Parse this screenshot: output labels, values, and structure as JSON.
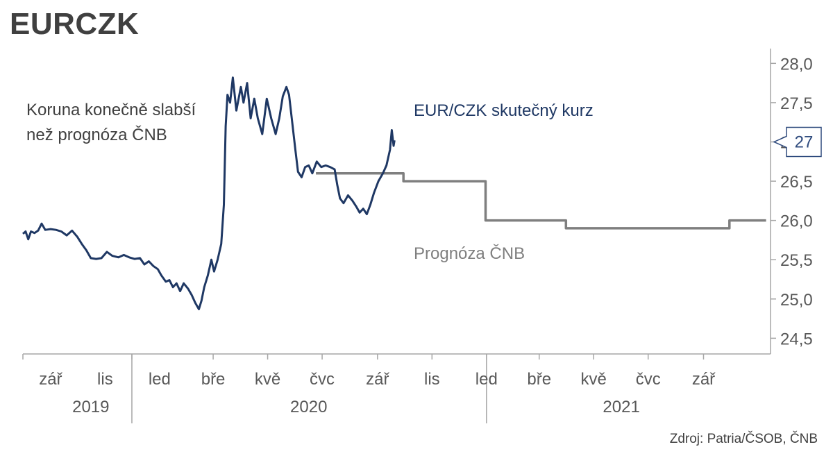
{
  "title": "EURCZK",
  "source": "Zdroj: Patria/ČSOB, ČNB",
  "colors": {
    "actual": "#1f3864",
    "forecast": "#7f7f7f",
    "axis": "#a6a6a6",
    "text": "#595959",
    "callout": "#2e4a7d"
  },
  "chart_data": {
    "type": "line",
    "title": "EURCZK",
    "xlabel": "",
    "ylabel": "",
    "xlim": [
      "2019-08-01",
      "2021-11-15"
    ],
    "ylim": [
      24.3,
      28.1
    ],
    "y_ticks": [
      24.5,
      25.0,
      25.5,
      26.0,
      26.5,
      27.0,
      27.5,
      28.0
    ],
    "y_tick_labels": [
      "24,5",
      "25,0",
      "25,5",
      "26,0",
      "26,5",
      "27,0",
      "27,5",
      "28,0"
    ],
    "x_ticks": [
      {
        "date": "2019-08-01",
        "label": "",
        "mark": true
      },
      {
        "date": "2019-10-01",
        "label": "",
        "mark": false
      },
      {
        "date": "2019-12-01",
        "label": "",
        "mark": true
      },
      {
        "date": "2020-01-01",
        "label": "",
        "mark": false
      },
      {
        "date": "2020-03-01",
        "label": "",
        "mark": true
      },
      {
        "date": "2020-05-01",
        "label": "",
        "mark": true
      },
      {
        "date": "2020-07-01",
        "label": "",
        "mark": true
      },
      {
        "date": "2020-09-01",
        "label": "",
        "mark": true
      },
      {
        "date": "2020-11-01",
        "label": "",
        "mark": true
      },
      {
        "date": "2021-01-01",
        "label": "",
        "mark": true
      },
      {
        "date": "2021-03-01",
        "label": "",
        "mark": true
      },
      {
        "date": "2021-05-01",
        "label": "",
        "mark": true
      },
      {
        "date": "2021-07-01",
        "label": "",
        "mark": true
      },
      {
        "date": "2021-09-01",
        "label": "",
        "mark": true
      }
    ],
    "x_month_labels": [
      {
        "date": "2019-09-01",
        "label": "zář"
      },
      {
        "date": "2019-11-01",
        "label": "lis"
      },
      {
        "date": "2020-01-01",
        "label": "led"
      },
      {
        "date": "2020-03-01",
        "label": "bře"
      },
      {
        "date": "2020-05-01",
        "label": "kvě"
      },
      {
        "date": "2020-07-01",
        "label": "čvc"
      },
      {
        "date": "2020-09-01",
        "label": "zář"
      },
      {
        "date": "2020-11-01",
        "label": "lis"
      },
      {
        "date": "2021-01-01",
        "label": "led"
      },
      {
        "date": "2021-03-01",
        "label": "bře"
      },
      {
        "date": "2021-05-01",
        "label": "kvě"
      },
      {
        "date": "2021-07-01",
        "label": "čvc"
      },
      {
        "date": "2021-09-01",
        "label": "zář"
      }
    ],
    "x_year_labels": [
      {
        "date": "2019-10-16",
        "label": "2019"
      },
      {
        "date": "2020-06-16",
        "label": "2020"
      },
      {
        "date": "2021-06-01",
        "label": "2021"
      }
    ],
    "year_separators": [
      "2019-12-01",
      "2021-01-01"
    ],
    "series": [
      {
        "name": "EUR/CZK skutečný kurz",
        "style": "actual",
        "points": [
          [
            "2019-08-01",
            25.83
          ],
          [
            "2019-08-04",
            25.86
          ],
          [
            "2019-08-07",
            25.76
          ],
          [
            "2019-08-10",
            25.86
          ],
          [
            "2019-08-14",
            25.84
          ],
          [
            "2019-08-18",
            25.87
          ],
          [
            "2019-08-22",
            25.96
          ],
          [
            "2019-08-26",
            25.88
          ],
          [
            "2019-09-01",
            25.89
          ],
          [
            "2019-09-07",
            25.88
          ],
          [
            "2019-09-13",
            25.86
          ],
          [
            "2019-09-19",
            25.81
          ],
          [
            "2019-09-25",
            25.87
          ],
          [
            "2019-10-01",
            25.79
          ],
          [
            "2019-10-06",
            25.7
          ],
          [
            "2019-10-11",
            25.62
          ],
          [
            "2019-10-16",
            25.52
          ],
          [
            "2019-10-22",
            25.51
          ],
          [
            "2019-10-28",
            25.52
          ],
          [
            "2019-11-03",
            25.6
          ],
          [
            "2019-11-09",
            25.55
          ],
          [
            "2019-11-16",
            25.53
          ],
          [
            "2019-11-22",
            25.56
          ],
          [
            "2019-11-28",
            25.53
          ],
          [
            "2019-12-04",
            25.51
          ],
          [
            "2019-12-10",
            25.52
          ],
          [
            "2019-12-15",
            25.44
          ],
          [
            "2019-12-20",
            25.48
          ],
          [
            "2019-12-25",
            25.42
          ],
          [
            "2019-12-30",
            25.38
          ],
          [
            "2020-01-03",
            25.3
          ],
          [
            "2020-01-08",
            25.22
          ],
          [
            "2020-01-12",
            25.24
          ],
          [
            "2020-01-16",
            25.15
          ],
          [
            "2020-01-20",
            25.2
          ],
          [
            "2020-01-24",
            25.1
          ],
          [
            "2020-01-28",
            25.2
          ],
          [
            "2020-02-02",
            25.13
          ],
          [
            "2020-02-06",
            25.05
          ],
          [
            "2020-02-10",
            24.95
          ],
          [
            "2020-02-14",
            24.87
          ],
          [
            "2020-02-17",
            24.98
          ],
          [
            "2020-02-20",
            25.15
          ],
          [
            "2020-02-24",
            25.3
          ],
          [
            "2020-02-28",
            25.5
          ],
          [
            "2020-03-02",
            25.35
          ],
          [
            "2020-03-06",
            25.5
          ],
          [
            "2020-03-10",
            25.7
          ],
          [
            "2020-03-13",
            26.2
          ],
          [
            "2020-03-15",
            27.2
          ],
          [
            "2020-03-17",
            27.6
          ],
          [
            "2020-03-20",
            27.5
          ],
          [
            "2020-03-23",
            27.82
          ],
          [
            "2020-03-27",
            27.4
          ],
          [
            "2020-04-01",
            27.7
          ],
          [
            "2020-04-04",
            27.5
          ],
          [
            "2020-04-08",
            27.75
          ],
          [
            "2020-04-12",
            27.3
          ],
          [
            "2020-04-16",
            27.55
          ],
          [
            "2020-04-20",
            27.3
          ],
          [
            "2020-04-25",
            27.1
          ],
          [
            "2020-04-30",
            27.55
          ],
          [
            "2020-05-05",
            27.3
          ],
          [
            "2020-05-10",
            27.1
          ],
          [
            "2020-05-14",
            27.3
          ],
          [
            "2020-05-18",
            27.58
          ],
          [
            "2020-05-22",
            27.7
          ],
          [
            "2020-05-25",
            27.6
          ],
          [
            "2020-05-28",
            27.3
          ],
          [
            "2020-06-01",
            26.9
          ],
          [
            "2020-06-04",
            26.62
          ],
          [
            "2020-06-08",
            26.55
          ],
          [
            "2020-06-12",
            26.68
          ],
          [
            "2020-06-16",
            26.7
          ],
          [
            "2020-06-20",
            26.6
          ],
          [
            "2020-06-25",
            26.75
          ],
          [
            "2020-06-30",
            26.68
          ],
          [
            "2020-07-05",
            26.7
          ],
          [
            "2020-07-10",
            26.68
          ],
          [
            "2020-07-15",
            26.65
          ],
          [
            "2020-07-18",
            26.45
          ],
          [
            "2020-07-21",
            26.28
          ],
          [
            "2020-07-25",
            26.22
          ],
          [
            "2020-07-30",
            26.32
          ],
          [
            "2020-08-04",
            26.25
          ],
          [
            "2020-08-08",
            26.18
          ],
          [
            "2020-08-12",
            26.1
          ],
          [
            "2020-08-16",
            26.15
          ],
          [
            "2020-08-20",
            26.08
          ],
          [
            "2020-08-24",
            26.2
          ],
          [
            "2020-08-28",
            26.35
          ],
          [
            "2020-09-02",
            26.5
          ],
          [
            "2020-09-07",
            26.6
          ],
          [
            "2020-09-11",
            26.7
          ],
          [
            "2020-09-15",
            26.9
          ],
          [
            "2020-09-17",
            27.15
          ],
          [
            "2020-09-19",
            26.95
          ],
          [
            "2020-09-20",
            27.02
          ]
        ]
      },
      {
        "name": "Prognóza ČNB",
        "style": "forecast",
        "points": [
          [
            "2020-06-24",
            26.6
          ],
          [
            "2020-09-30",
            26.6
          ],
          [
            "2020-09-30",
            26.5
          ],
          [
            "2020-12-31",
            26.5
          ],
          [
            "2020-12-31",
            26.0
          ],
          [
            "2021-03-31",
            26.0
          ],
          [
            "2021-03-31",
            25.9
          ],
          [
            "2021-09-30",
            25.9
          ],
          [
            "2021-09-30",
            26.0
          ],
          [
            "2021-11-10",
            26.0
          ]
        ]
      }
    ],
    "annotations": [
      {
        "text_lines": [
          "Koruna konečně slabší",
          "než prognóza ČNB"
        ],
        "color": "#404040",
        "anchor": "top-left"
      },
      {
        "text_lines": [
          "EUR/CZK skutečný kurz"
        ],
        "color": "#1f3864",
        "anchor": "top-center"
      },
      {
        "text_lines": [
          "Prognóza ČNB"
        ],
        "color": "#7f7f7f",
        "anchor": "center"
      }
    ],
    "callout": {
      "value": 27,
      "label": "27"
    },
    "legend": "none",
    "grid": false
  }
}
